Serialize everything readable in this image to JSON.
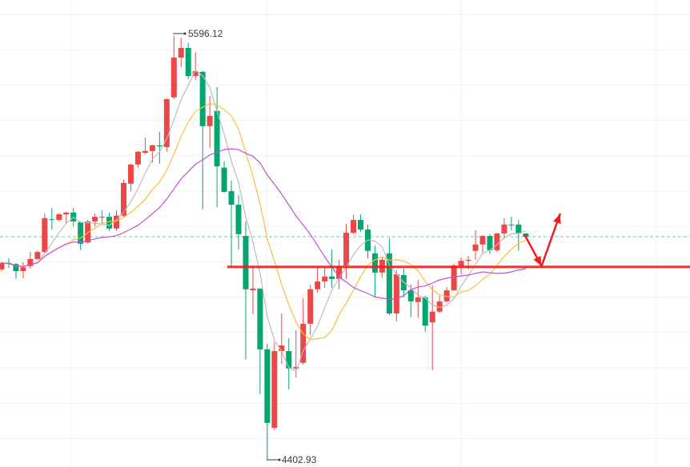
{
  "chart_data": {
    "type": "candlestick",
    "title": "",
    "xlabel": "",
    "ylabel": "",
    "ylim": [
      4402.93,
      5596.12
    ],
    "grid": true,
    "colors": {
      "up": "#ec4747",
      "down": "#03a66d",
      "ma_short": "#bdbdbd",
      "ma_mid": "#fbbf3a",
      "ma_long": "#c34fd6",
      "current_price_line": "#6fcfa7",
      "annotation": "#f01e1e"
    },
    "candles_ohlc": [
      [
        4939,
        4961,
        4934,
        4957
      ],
      [
        4957,
        4970,
        4943,
        4954
      ],
      [
        4954,
        4957,
        4912,
        4934
      ],
      [
        4934,
        4959,
        4914,
        4945
      ],
      [
        4948,
        4988,
        4941,
        4968
      ],
      [
        4968,
        4991,
        4966,
        4988
      ],
      [
        4988,
        5096,
        4986,
        5083
      ],
      [
        5080,
        5112,
        5051,
        5078
      ],
      [
        5078,
        5096,
        5074,
        5094
      ],
      [
        5094,
        5101,
        5067,
        5099
      ],
      [
        5099,
        5112,
        5060,
        5074
      ],
      [
        5072,
        5074,
        4993,
        5011
      ],
      [
        5015,
        5078,
        5011,
        5074
      ],
      [
        5074,
        5096,
        5060,
        5087
      ],
      [
        5085,
        5105,
        5065,
        5087
      ],
      [
        5087,
        5098,
        5047,
        5054
      ],
      [
        5054,
        5105,
        5047,
        5090
      ],
      [
        5090,
        5191,
        5087,
        5182
      ],
      [
        5180,
        5236,
        5159,
        5234
      ],
      [
        5234,
        5272,
        5225,
        5270
      ],
      [
        5267,
        5310,
        5263,
        5272
      ],
      [
        5272,
        5290,
        5240,
        5288
      ],
      [
        5288,
        5326,
        5236,
        5285
      ],
      [
        5283,
        5420,
        5270,
        5418
      ],
      [
        5423,
        5596.12,
        5418,
        5535
      ],
      [
        5535,
        5591,
        5508,
        5562
      ],
      [
        5562,
        5576,
        5474,
        5483
      ],
      [
        5483,
        5549,
        5472,
        5497
      ],
      [
        5495,
        5497,
        5108,
        5342
      ],
      [
        5342,
        5427,
        5281,
        5371
      ],
      [
        5385,
        5452,
        5114,
        5229
      ],
      [
        5225,
        5243,
        5155,
        5157
      ],
      [
        5159,
        5189,
        4948,
        5121
      ],
      [
        5121,
        5148,
        4995,
        5038
      ],
      [
        5033,
        5074,
        4685,
        4883
      ],
      [
        4880,
        4950,
        4813,
        4885
      ],
      [
        4885,
        4885,
        4588,
        4714
      ],
      [
        4714,
        4730,
        4402.93,
        4507
      ],
      [
        4493,
        4734,
        4487,
        4709
      ],
      [
        4709,
        4815,
        4673,
        4725
      ],
      [
        4709,
        4745,
        4601,
        4660
      ],
      [
        4660,
        4768,
        4635,
        4664
      ],
      [
        4676,
        4858,
        4671,
        4786
      ],
      [
        4786,
        4896,
        4754,
        4883
      ],
      [
        4883,
        4948,
        4874,
        4905
      ],
      [
        4905,
        4943,
        4887,
        4919
      ],
      [
        4919,
        4995,
        4887,
        4912
      ],
      [
        4912,
        4966,
        4883,
        4948
      ],
      [
        4950,
        5067,
        4912,
        5042
      ],
      [
        5042,
        5092,
        5038,
        5078
      ],
      [
        5078,
        5094,
        5045,
        5051
      ],
      [
        5051,
        5065,
        4970,
        4991
      ],
      [
        4984,
        5006,
        4860,
        4930
      ],
      [
        4930,
        4973,
        4916,
        4966
      ],
      [
        4984,
        5027,
        4811,
        4815
      ],
      [
        4815,
        4937,
        4793,
        4925
      ],
      [
        4923,
        4941,
        4860,
        4880
      ],
      [
        4880,
        4896,
        4804,
        4849
      ],
      [
        4847,
        4910,
        4804,
        4860
      ],
      [
        4860,
        4865,
        4763,
        4781
      ],
      [
        4790,
        4894,
        4657,
        4820
      ],
      [
        4820,
        4865,
        4817,
        4849
      ],
      [
        4849,
        4889,
        4847,
        4880
      ],
      [
        4880,
        4955,
        4878,
        4950
      ],
      [
        4948,
        4973,
        4925,
        4963
      ],
      [
        4963,
        4977,
        4939,
        4966
      ],
      [
        4991,
        5049,
        4966,
        5009
      ],
      [
        5009,
        5036,
        4982,
        5033
      ],
      [
        5033,
        5038,
        4982,
        4993
      ],
      [
        4993,
        5042,
        4988,
        5040
      ],
      [
        5040,
        5083,
        5024,
        5065
      ],
      [
        5065,
        5087,
        5049,
        5063
      ],
      [
        5065,
        5078,
        4991,
        5040
      ],
      [
        5040,
        5040,
        5031,
        5031
      ]
    ],
    "annotations": {
      "high_label": "5596.12",
      "low_label": "4402.93",
      "support_line_price": 4946,
      "current_price": 5031,
      "arrow_path": [
        [
          72.8,
          5038
        ],
        [
          75.2,
          4948
        ],
        [
          77.8,
          5096
        ]
      ]
    }
  }
}
